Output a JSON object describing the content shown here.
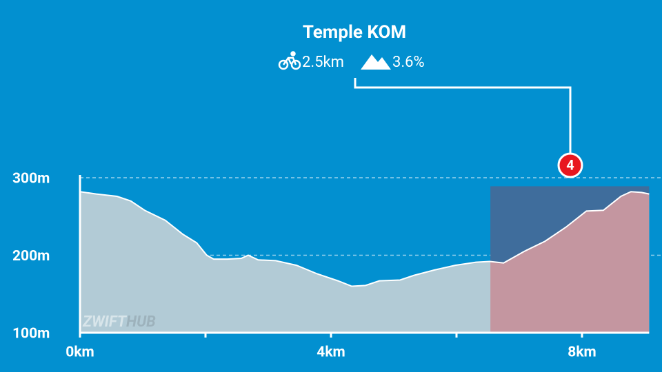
{
  "chart_data": {
    "type": "area",
    "title": "Temple KOM",
    "segment": {
      "distance": "2.5km",
      "gradient": "3.6%",
      "badge": "4",
      "start": 6.54,
      "end": 9.07,
      "top": 289,
      "color": "#c496a0",
      "box_color": "#3f6d9c"
    },
    "watermark": {
      "first": "ZWIFT",
      "second": "HUB"
    },
    "x": [
      0,
      0.26,
      0.59,
      0.81,
      1.03,
      1.36,
      1.64,
      1.86,
      2.02,
      2.13,
      2.35,
      2.57,
      2.68,
      2.84,
      3.12,
      3.45,
      3.78,
      4.11,
      4.33,
      4.55,
      4.77,
      5.1,
      5.32,
      5.65,
      5.98,
      6.31,
      6.53,
      6.75,
      7.08,
      7.41,
      7.74,
      8.07,
      8.34,
      8.62,
      8.78,
      8.95,
      9.07
    ],
    "y": [
      282,
      279,
      276,
      270,
      258,
      245,
      227,
      216,
      200,
      195,
      195,
      196,
      200,
      194,
      193,
      187,
      176,
      167,
      160,
      161,
      167,
      168,
      174,
      181,
      187,
      191,
      192,
      190,
      205,
      218,
      236,
      257,
      258,
      276,
      282,
      281,
      279
    ],
    "color": "#b2cbd6",
    "xlim": [
      0,
      9.07
    ],
    "ylim": [
      100,
      300
    ],
    "xticks": [
      {
        "value": 0,
        "label": "0km"
      },
      {
        "value": 4,
        "label": "4km"
      },
      {
        "value": 8,
        "label": "8km"
      }
    ],
    "xminorticks": [
      2,
      6
    ],
    "yticks": [
      {
        "value": 100,
        "label": "100m"
      },
      {
        "value": 200,
        "label": "200m"
      },
      {
        "value": 300,
        "label": "300m"
      }
    ],
    "grid": true
  }
}
